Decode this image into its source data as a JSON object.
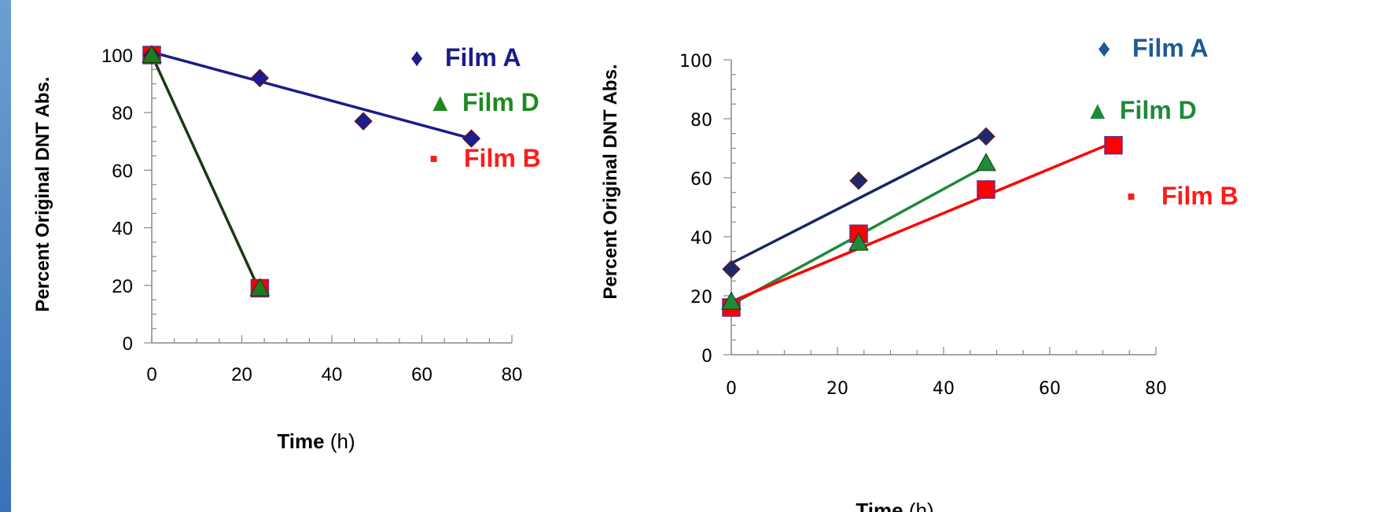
{
  "chart_data": [
    {
      "type": "scatter",
      "ylabel": "Percent Original DNT Abs.",
      "xlabel_bold": "Time",
      "xlabel_unit": " (h)",
      "xlim": [
        0,
        80
      ],
      "ylim": [
        0,
        100
      ],
      "xticks": [
        "0",
        "20",
        "40",
        "60",
        "80"
      ],
      "yticks": [
        "0",
        "20",
        "40",
        "60",
        "80",
        "100"
      ],
      "series": [
        {
          "name": "Film A",
          "marker": "diamond",
          "color": "#1c1c8c",
          "line_color": "#1c1c8c",
          "x": [
            0,
            24,
            47,
            71
          ],
          "y": [
            100,
            92,
            77,
            71
          ],
          "fit": [
            [
              0,
              101
            ],
            [
              71,
              71
            ]
          ]
        },
        {
          "name": "Film D",
          "marker": "triangle",
          "color": "#1e7a1e",
          "line_color": "#1a3a12",
          "x": [
            0,
            24
          ],
          "y": [
            100,
            19
          ],
          "fit": [
            [
              0,
              100
            ],
            [
              24,
              18
            ]
          ]
        },
        {
          "name": "Film B",
          "marker": "square",
          "color": "#ff0000",
          "line_color": "#ff0000",
          "x": [
            0,
            24
          ],
          "y": [
            100,
            19
          ],
          "fit": []
        }
      ],
      "legend": [
        {
          "symbol": "♦",
          "label": "Film A",
          "color": "#1c1c8c"
        },
        {
          "symbol": "▲",
          "label": "Film D",
          "color": "#1e8a1e"
        },
        {
          "symbol": "▪",
          "label": "Film B",
          "color": "#ff1a1a"
        }
      ]
    },
    {
      "type": "scatter",
      "ylabel": "Percent Original DNT Abs.",
      "xlabel_bold": "Time",
      "xlabel_unit": " (h)",
      "xlim": [
        0,
        80
      ],
      "ylim": [
        0,
        100
      ],
      "xticks": [
        "0",
        "20",
        "40",
        "60",
        "80"
      ],
      "yticks": [
        "0",
        "20",
        "40",
        "60",
        "80",
        "100"
      ],
      "series": [
        {
          "name": "Film A",
          "marker": "diamond",
          "color": "#1c2a6c",
          "line_color": "#17285e",
          "x": [
            0,
            24,
            48
          ],
          "y": [
            29,
            59,
            74
          ],
          "fit": [
            [
              0,
              31
            ],
            [
              48,
              75
            ]
          ]
        },
        {
          "name": "Film D",
          "marker": "triangle",
          "color": "#1e8a3a",
          "line_color": "#1e8a3a",
          "x": [
            0,
            24,
            48
          ],
          "y": [
            18,
            38,
            65
          ],
          "fit": [
            [
              0,
              17
            ],
            [
              48,
              64
            ]
          ]
        },
        {
          "name": "Film B",
          "marker": "square",
          "color": "#ff0000",
          "line_color": "#ff0000",
          "x": [
            0,
            24,
            48,
            72
          ],
          "y": [
            16,
            41,
            56,
            71
          ],
          "fit": [
            [
              0,
              18
            ],
            [
              72,
              72
            ]
          ]
        }
      ],
      "legend": [
        {
          "symbol": "♦",
          "label": "Film A",
          "color": "#1f5a96"
        },
        {
          "symbol": "▲",
          "label": "Film D",
          "color": "#1e8a3a"
        },
        {
          "symbol": "▪",
          "label": "Film B",
          "color": "#ff1a1a"
        }
      ]
    }
  ]
}
